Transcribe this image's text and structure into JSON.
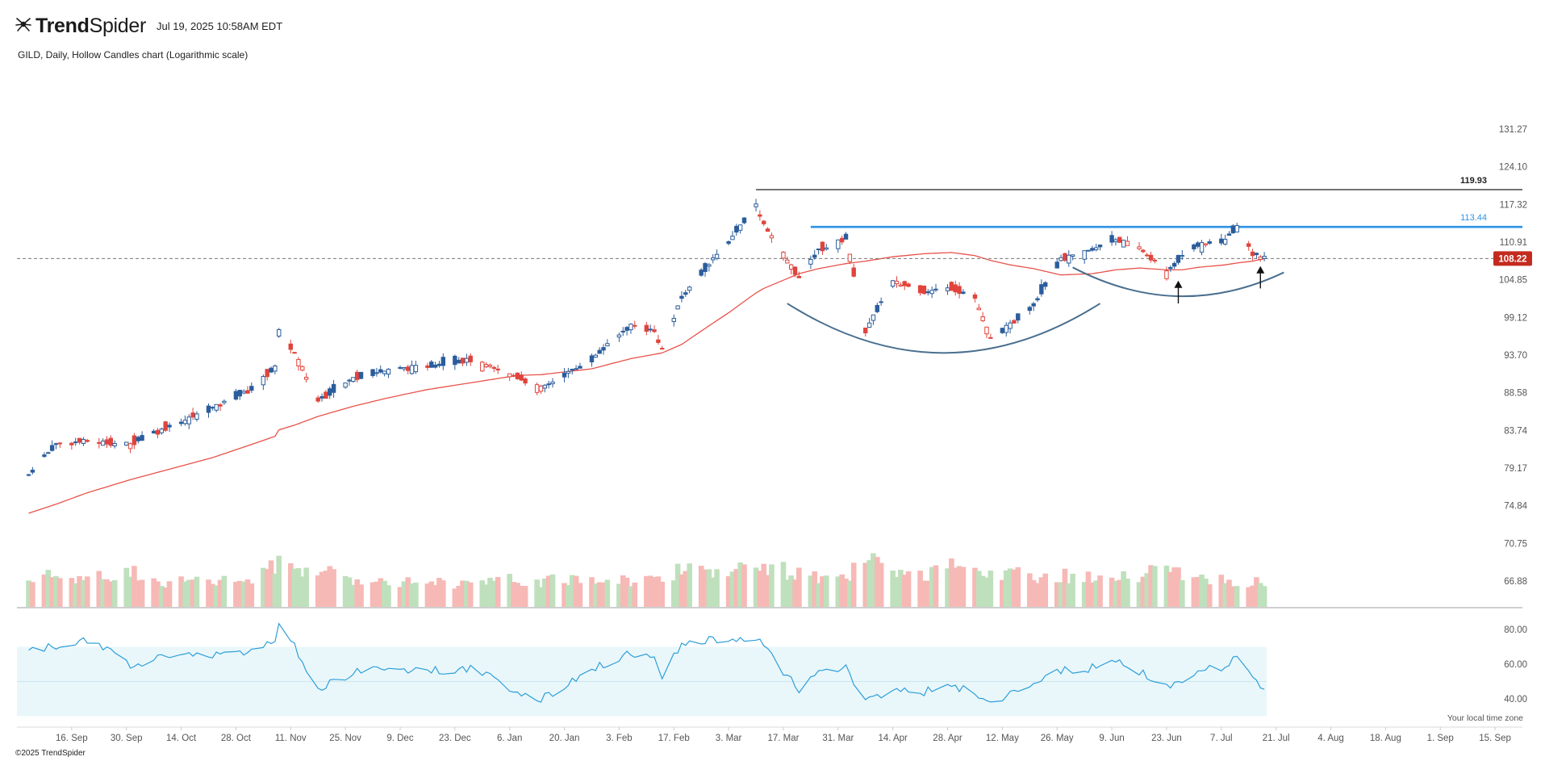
{
  "header": {
    "brand_bold": "Trend",
    "brand_light": "Spider",
    "timestamp": "Jul 19, 2025 10:58AM EDT",
    "subtitle": "GILD, Daily, Hollow Candles chart (Logarithmic scale)"
  },
  "footer": {
    "copyright": "©2025 TrendSpider",
    "timezone_note": "Your local time zone"
  },
  "icons": {
    "logo": "spider-logo-icon"
  },
  "colors": {
    "up": "#2b5d9c",
    "down": "#e0443c",
    "ma": "#e8524a",
    "resistance_high": "#222222",
    "resistance_mid": "#2e92e6",
    "cup_arc": "#4a6f8f",
    "vol_up": "#bfe0bc",
    "vol_down": "#f6b9b6",
    "rsi_line": "#2e9fd8",
    "rsi_band": "#e9f7fb",
    "price_badge": "#c42b1f"
  },
  "chart_data": {
    "type": "candlestick",
    "symbol": "GILD",
    "interval": "Daily",
    "scale": "logarithmic",
    "price_axis_ticks": [
      131.27,
      124.1,
      117.32,
      110.91,
      104.85,
      99.12,
      93.7,
      88.58,
      83.74,
      79.17,
      74.84,
      70.75,
      66.88
    ],
    "rsi_axis_ticks": [
      80.0,
      60.0,
      40.0
    ],
    "x_axis_labels": [
      "16. Sep",
      "30. Sep",
      "14. Oct",
      "28. Oct",
      "11. Nov",
      "25. Nov",
      "9. Dec",
      "23. Dec",
      "6. Jan",
      "20. Jan",
      "3. Feb",
      "17. Feb",
      "3. Mar",
      "17. Mar",
      "31. Mar",
      "14. Apr",
      "28. Apr",
      "12. May",
      "26. May",
      "9. Jun",
      "23. Jun",
      "7. Jul",
      "21. Jul",
      "4. Aug",
      "18. Aug",
      "1. Sep",
      "15. Sep"
    ],
    "horizontal_levels": [
      {
        "label": "119.93",
        "value": 119.93,
        "color": "#222222",
        "from": "2025-03-10"
      },
      {
        "label": "113.44",
        "value": 113.44,
        "color": "#2e92e6",
        "from": "2025-03-24"
      }
    ],
    "last_price": 108.22,
    "last_price_label": "108.22",
    "arcs": [
      {
        "from": "2025-03-18",
        "to": "2025-06-06",
        "low": 94.0,
        "left_end": 101.2,
        "right_end": 101.2
      },
      {
        "from": "2025-05-30",
        "to": "2025-07-23",
        "low": 102.3,
        "left_end": 106.8,
        "right_end": 106.0
      }
    ],
    "arrows": [
      {
        "date": "2025-06-26",
        "low": 101.2,
        "high": 104.7
      },
      {
        "date": "2025-07-17",
        "low": 103.5,
        "high": 107.0
      }
    ],
    "anchors": [
      {
        "date": "2024-09-05",
        "close": 78.4,
        "ma": 74.0,
        "rsi": 68,
        "vol": 0.3
      },
      {
        "date": "2024-09-12",
        "close": 82.0,
        "ma": 75.0,
        "rsi": 70,
        "vol": 0.35
      },
      {
        "date": "2024-09-20",
        "close": 82.4,
        "ma": 76.3,
        "rsi": 74,
        "vol": 0.3
      },
      {
        "date": "2024-10-01",
        "close": 82.0,
        "ma": 77.8,
        "rsi": 60,
        "vol": 0.4
      },
      {
        "date": "2024-10-10",
        "close": 84.0,
        "ma": 78.9,
        "rsi": 64,
        "vol": 0.28
      },
      {
        "date": "2024-10-22",
        "close": 86.5,
        "ma": 80.4,
        "rsi": 66,
        "vol": 0.28
      },
      {
        "date": "2024-11-01",
        "close": 89.0,
        "ma": 82.0,
        "rsi": 68,
        "vol": 0.3
      },
      {
        "date": "2024-11-07",
        "close": 92.0,
        "ma": 83.0,
        "rsi": 72,
        "vol": 0.45
      },
      {
        "date": "2024-11-08",
        "close": 97.0,
        "ma": 83.8,
        "rsi": 83,
        "vol": 0.55
      },
      {
        "date": "2024-11-12",
        "close": 94.0,
        "ma": 84.4,
        "rsi": 70,
        "vol": 0.45
      },
      {
        "date": "2024-11-18",
        "close": 87.5,
        "ma": 85.5,
        "rsi": 46,
        "vol": 0.4
      },
      {
        "date": "2024-11-27",
        "close": 90.5,
        "ma": 86.8,
        "rsi": 55,
        "vol": 0.3
      },
      {
        "date": "2024-12-05",
        "close": 91.5,
        "ma": 87.8,
        "rsi": 58,
        "vol": 0.3
      },
      {
        "date": "2024-12-16",
        "close": 92.2,
        "ma": 89.0,
        "rsi": 56,
        "vol": 0.28
      },
      {
        "date": "2024-12-27",
        "close": 93.0,
        "ma": 89.9,
        "rsi": 58,
        "vol": 0.26
      },
      {
        "date": "2025-01-08",
        "close": 90.6,
        "ma": 90.9,
        "rsi": 44,
        "vol": 0.3
      },
      {
        "date": "2025-01-14",
        "close": 89.2,
        "ma": 91.0,
        "rsi": 40,
        "vol": 0.28
      },
      {
        "date": "2025-01-27",
        "close": 93.0,
        "ma": 91.8,
        "rsi": 57,
        "vol": 0.32
      },
      {
        "date": "2025-02-06",
        "close": 98.0,
        "ma": 93.2,
        "rsi": 66,
        "vol": 0.3
      },
      {
        "date": "2025-02-12",
        "close": 97.0,
        "ma": 93.8,
        "rsi": 64,
        "vol": 0.3
      },
      {
        "date": "2025-02-14",
        "close": 94.5,
        "ma": 94.0,
        "rsi": 52,
        "vol": 0.28
      },
      {
        "date": "2025-02-19",
        "close": 102.0,
        "ma": 95.2,
        "rsi": 73,
        "vol": 0.45
      },
      {
        "date": "2025-03-03",
        "close": 111.0,
        "ma": 99.8,
        "rsi": 74,
        "vol": 0.4
      },
      {
        "date": "2025-03-10",
        "close": 117.2,
        "ma": 102.8,
        "rsi": 76,
        "vol": 0.45
      },
      {
        "date": "2025-03-12",
        "close": 114.0,
        "ma": 103.5,
        "rsi": 70,
        "vol": 0.4
      },
      {
        "date": "2025-03-21",
        "close": 105.0,
        "ma": 105.8,
        "rsi": 45,
        "vol": 0.4
      },
      {
        "date": "2025-03-26",
        "close": 109.5,
        "ma": 106.6,
        "rsi": 55,
        "vol": 0.3
      },
      {
        "date": "2025-04-02",
        "close": 111.5,
        "ma": 107.4,
        "rsi": 58,
        "vol": 0.3
      },
      {
        "date": "2025-04-07",
        "close": 97.0,
        "ma": 107.8,
        "rsi": 38,
        "vol": 0.55
      },
      {
        "date": "2025-04-14",
        "close": 104.5,
        "ma": 108.5,
        "rsi": 46,
        "vol": 0.35
      },
      {
        "date": "2025-04-22",
        "close": 103.0,
        "ma": 109.0,
        "rsi": 44,
        "vol": 0.32
      },
      {
        "date": "2025-04-29",
        "close": 103.5,
        "ma": 109.2,
        "rsi": 49,
        "vol": 0.45
      },
      {
        "date": "2025-05-05",
        "close": 102.0,
        "ma": 108.7,
        "rsi": 42,
        "vol": 0.35
      },
      {
        "date": "2025-05-09",
        "close": 96.0,
        "ma": 107.9,
        "rsi": 37,
        "vol": 0.35
      },
      {
        "date": "2025-05-14",
        "close": 98.0,
        "ma": 107.2,
        "rsi": 42,
        "vol": 0.38
      },
      {
        "date": "2025-05-20",
        "close": 101.0,
        "ma": 106.6,
        "rsi": 50,
        "vol": 0.35
      },
      {
        "date": "2025-05-27",
        "close": 108.0,
        "ma": 105.6,
        "rsi": 56,
        "vol": 0.35
      },
      {
        "date": "2025-06-04",
        "close": 109.5,
        "ma": 105.8,
        "rsi": 58,
        "vol": 0.32
      },
      {
        "date": "2025-06-10",
        "close": 111.4,
        "ma": 106.4,
        "rsi": 62,
        "vol": 0.3
      },
      {
        "date": "2025-06-16",
        "close": 110.0,
        "ma": 106.7,
        "rsi": 56,
        "vol": 0.35
      },
      {
        "date": "2025-06-23",
        "close": 106.0,
        "ma": 106.4,
        "rsi": 46,
        "vol": 0.55
      },
      {
        "date": "2025-06-27",
        "close": 108.5,
        "ma": 106.4,
        "rsi": 50,
        "vol": 0.3
      },
      {
        "date": "2025-07-01",
        "close": 110.3,
        "ma": 106.8,
        "rsi": 57,
        "vol": 0.32
      },
      {
        "date": "2025-07-08",
        "close": 111.2,
        "ma": 107.2,
        "rsi": 58,
        "vol": 0.28
      },
      {
        "date": "2025-07-11",
        "close": 113.5,
        "ma": 107.5,
        "rsi": 64,
        "vol": 0.28
      },
      {
        "date": "2025-07-15",
        "close": 109.0,
        "ma": 107.8,
        "rsi": 52,
        "vol": 0.28
      },
      {
        "date": "2025-07-18",
        "close": 108.2,
        "ma": 108.2,
        "rsi": 47,
        "vol": 0.28
      }
    ],
    "grid": false,
    "legend": "none",
    "panes": [
      "price",
      "volume",
      "rsi"
    ]
  }
}
